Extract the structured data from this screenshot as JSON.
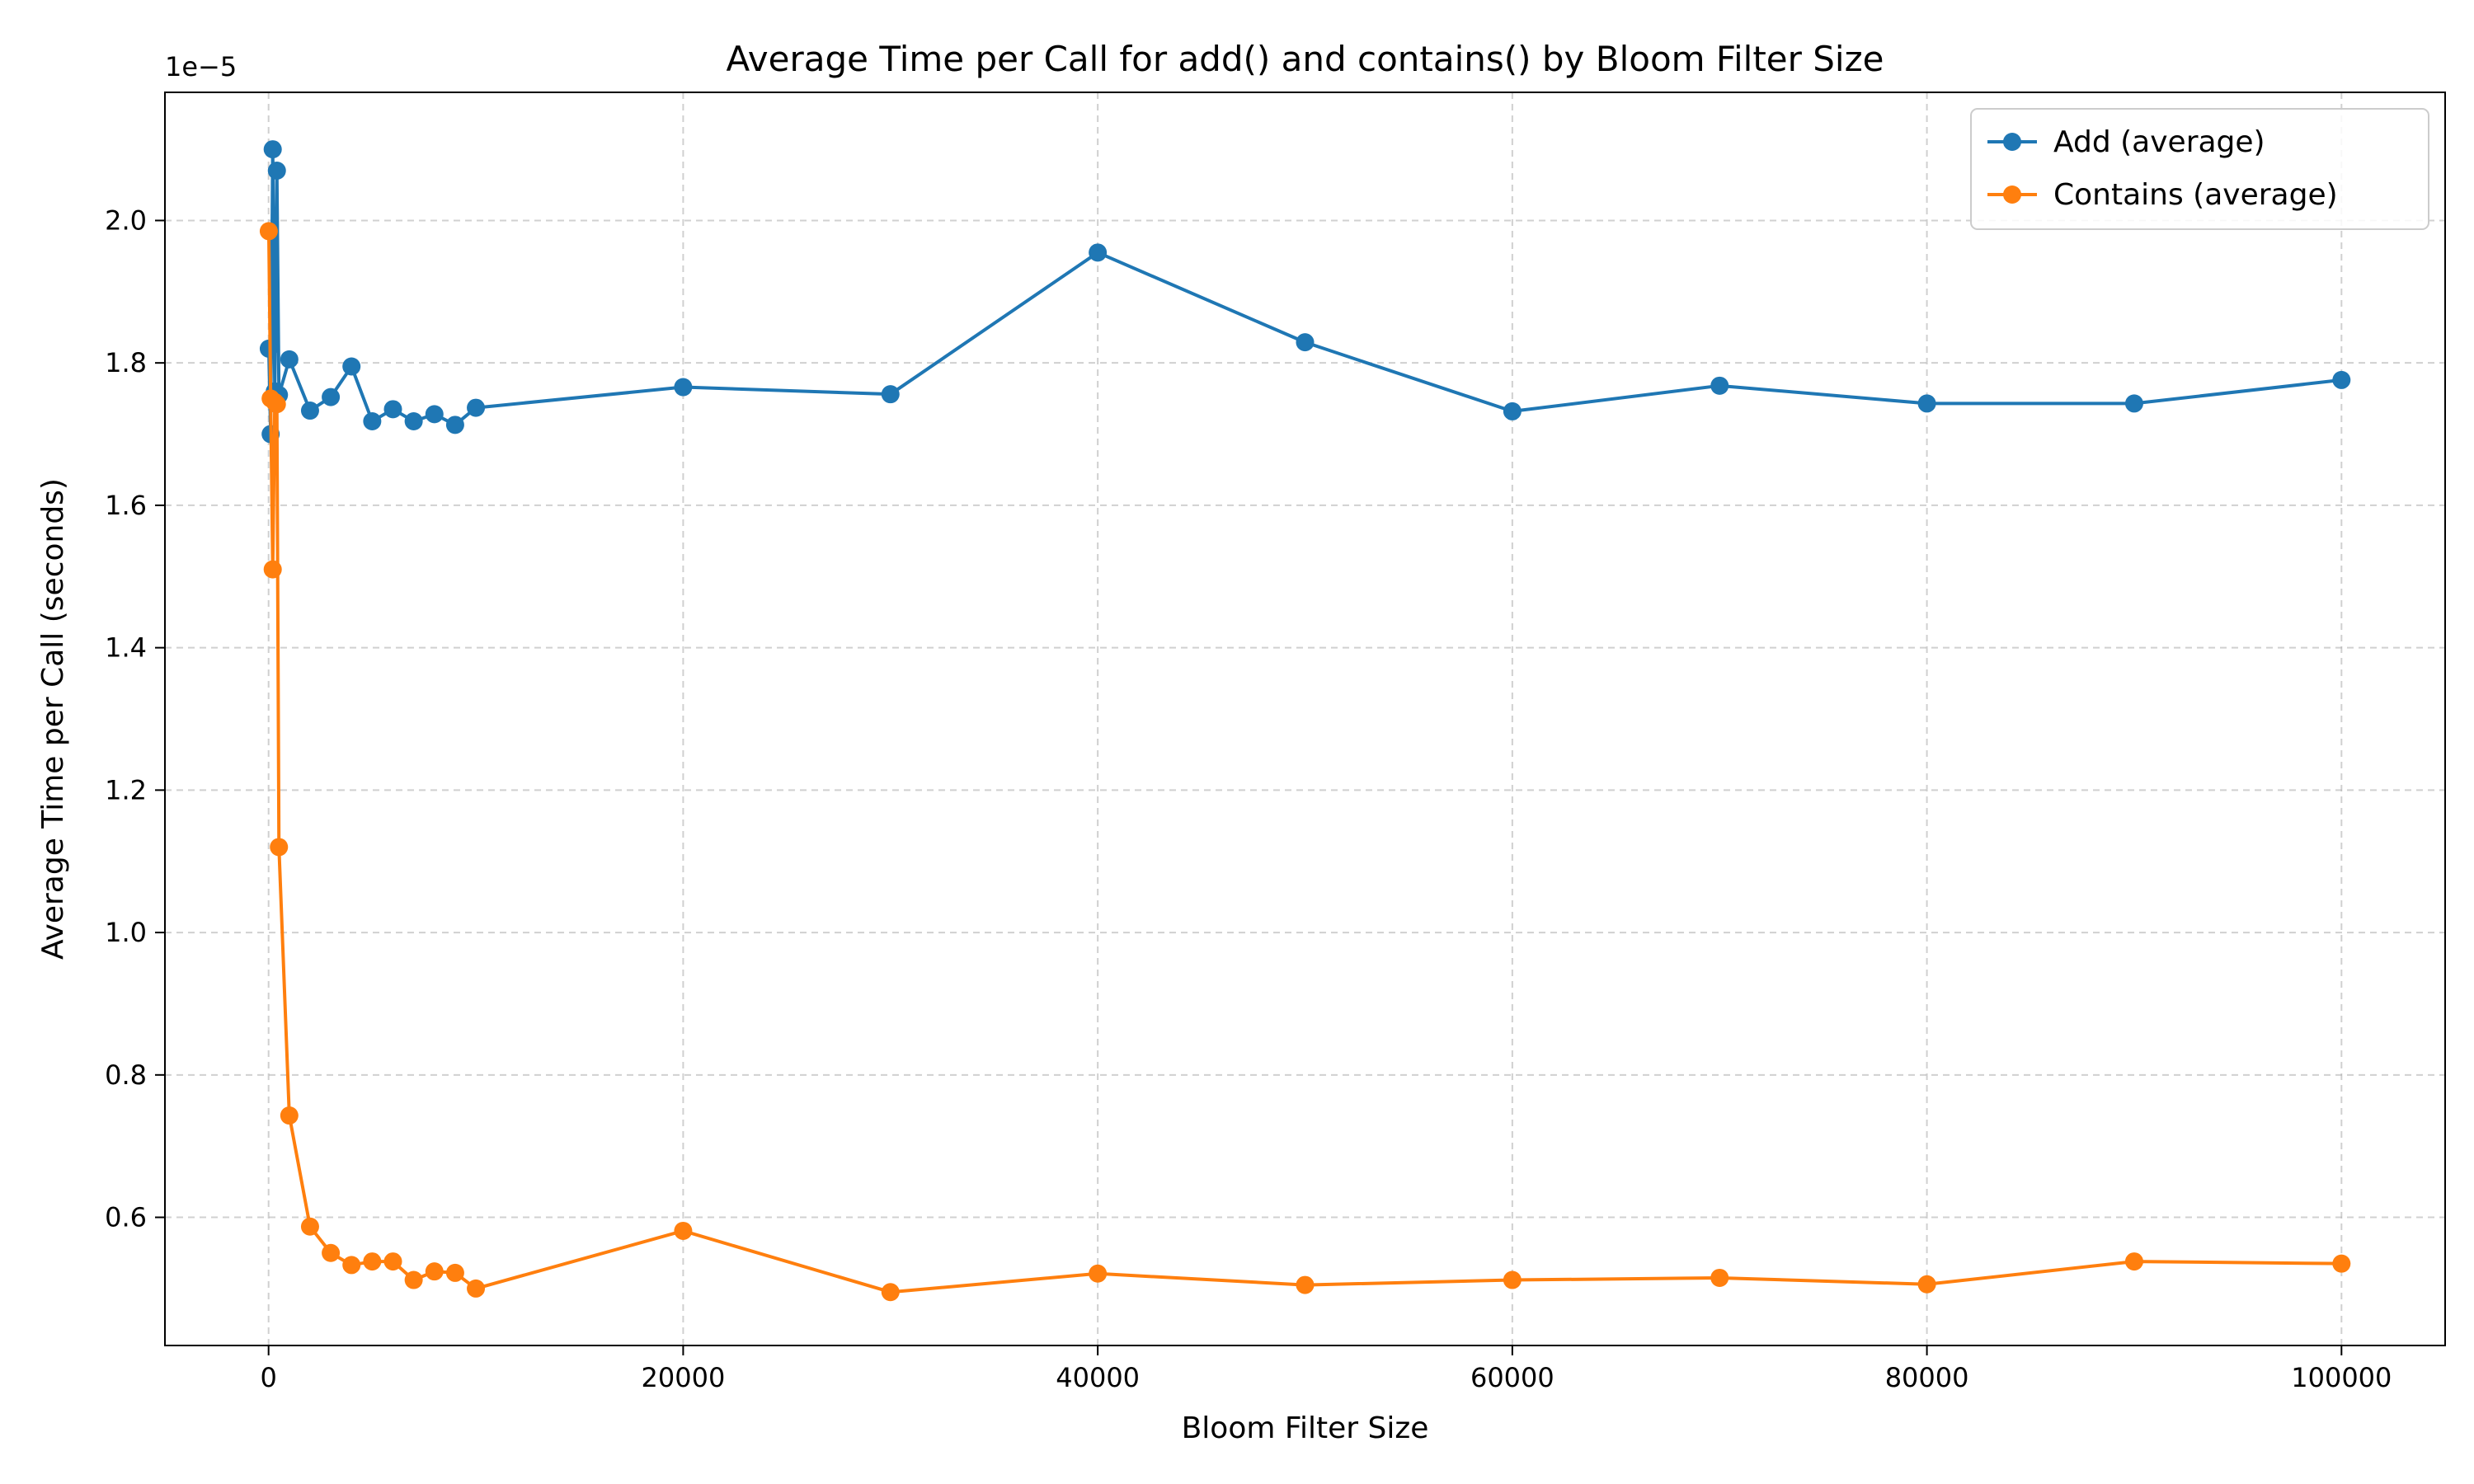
{
  "chart_data": {
    "type": "line",
    "title": "Average Time per Call for add() and contains() by Bloom Filter Size",
    "xlabel": "Bloom Filter Size",
    "ylabel": "Average Time per Call (seconds)",
    "y_offset_label": "1e−5",
    "y_scale_factor": 1e-05,
    "xlim": [
      -5000,
      105000
    ],
    "ylim": [
      4.2e-06,
      2.18e-05
    ],
    "x_ticks": [
      0,
      20000,
      40000,
      60000,
      80000,
      100000
    ],
    "x_tick_labels": [
      "0",
      "20000",
      "40000",
      "60000",
      "80000",
      "100000"
    ],
    "y_ticks": [
      6e-06,
      8e-06,
      1e-05,
      1.2e-05,
      1.4e-05,
      1.6e-05,
      1.8e-05,
      2e-05
    ],
    "y_tick_labels": [
      "0.6",
      "0.8",
      "1.0",
      "1.2",
      "1.4",
      "1.6",
      "1.8",
      "2.0"
    ],
    "grid": true,
    "legend_position": "top-right",
    "x": [
      10,
      100,
      200,
      300,
      400,
      500,
      1000,
      2000,
      3000,
      4000,
      5000,
      6000,
      7000,
      8000,
      9000,
      10000,
      20000,
      30000,
      40000,
      50000,
      60000,
      70000,
      80000,
      90000,
      100000
    ],
    "series": [
      {
        "name": "Add (average)",
        "color": "#1f77b4",
        "values": [
          1.82e-05,
          1.7e-05,
          2.1e-05,
          1.76e-05,
          2.07e-05,
          1.755e-05,
          1.805e-05,
          1.733e-05,
          1.752e-05,
          1.795e-05,
          1.718e-05,
          1.735e-05,
          1.718e-05,
          1.728e-05,
          1.713e-05,
          1.737e-05,
          1.766e-05,
          1.756e-05,
          1.955e-05,
          1.829e-05,
          1.732e-05,
          1.768e-05,
          1.743e-05,
          1.743e-05,
          1.776e-05
        ]
      },
      {
        "name": "Contains (average)",
        "color": "#ff7f0e",
        "values": [
          1.985e-05,
          1.75e-05,
          1.51e-05,
          1.745e-05,
          1.742e-05,
          1.12e-05,
          7.43e-06,
          5.87e-06,
          5.5e-06,
          5.33e-06,
          5.38e-06,
          5.38e-06,
          5.12e-06,
          5.24e-06,
          5.22e-06,
          5e-06,
          5.81e-06,
          4.95e-06,
          5.21e-06,
          5.05e-06,
          5.12e-06,
          5.15e-06,
          5.06e-06,
          5.38e-06,
          5.35e-06
        ]
      }
    ]
  }
}
